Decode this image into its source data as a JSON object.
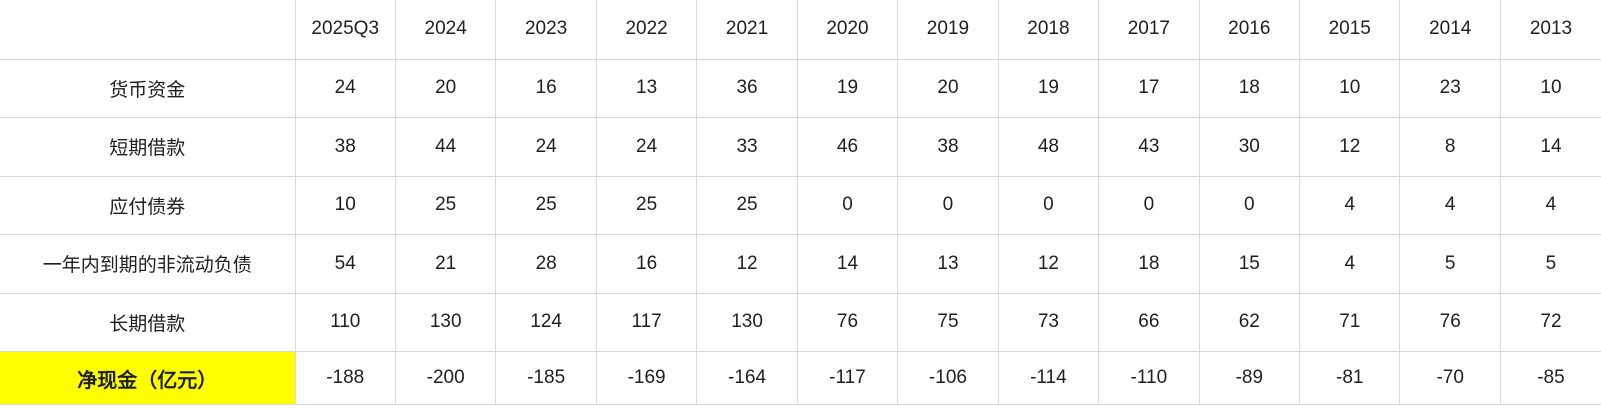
{
  "style": {
    "background_color": "#ffffff",
    "border_color": "#d9d9d9",
    "text_color": "#1f1f1f",
    "highlight_color": "#ffff00"
  },
  "table": {
    "corner_label": ""
  },
  "chart_data": {
    "type": "table",
    "title": "",
    "corner_label": "",
    "columns": [
      "2025Q3",
      "2024",
      "2023",
      "2022",
      "2021",
      "2020",
      "2019",
      "2018",
      "2017",
      "2016",
      "2015",
      "2014",
      "2013"
    ],
    "rows": [
      {
        "label": "货币资金",
        "values": [
          24,
          20,
          16,
          13,
          36,
          19,
          20,
          19,
          17,
          18,
          10,
          23,
          10
        ],
        "highlight": false
      },
      {
        "label": "短期借款",
        "values": [
          38,
          44,
          24,
          24,
          33,
          46,
          38,
          48,
          43,
          30,
          12,
          8,
          14
        ],
        "highlight": false
      },
      {
        "label": "应付债券",
        "values": [
          10,
          25,
          25,
          25,
          25,
          0,
          0,
          0,
          0,
          0,
          4,
          4,
          4
        ],
        "highlight": false
      },
      {
        "label": "一年内到期的非流动负债",
        "values": [
          54,
          21,
          28,
          16,
          12,
          14,
          13,
          12,
          18,
          15,
          4,
          5,
          5
        ],
        "highlight": false
      },
      {
        "label": "长期借款",
        "values": [
          110,
          130,
          124,
          117,
          130,
          76,
          75,
          73,
          66,
          62,
          71,
          76,
          72
        ],
        "highlight": false
      },
      {
        "label": "净现金（亿元）",
        "values": [
          -188,
          -200,
          -185,
          -169,
          -164,
          -117,
          -106,
          -114,
          -110,
          -89,
          -81,
          -70,
          -85
        ],
        "highlight": true
      }
    ]
  }
}
